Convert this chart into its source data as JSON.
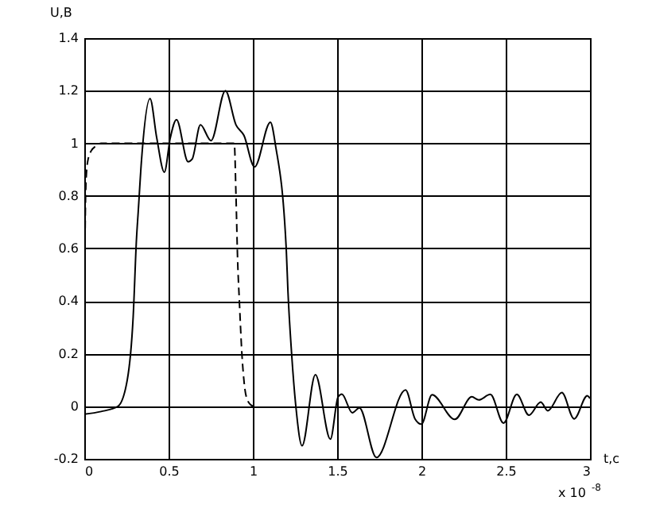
{
  "chart_data": {
    "type": "line",
    "xlabel": "t,с",
    "ylabel": "U,В",
    "annotations": [
      "x 10$^{-8}$"
    ],
    "xlim": [
      0,
      3
    ],
    "xticks": [
      0,
      0.5,
      1,
      1.5,
      2,
      2.5,
      3
    ],
    "ylim": [
      -0.2,
      1.4
    ],
    "yticks": [
      -0.2,
      0,
      0.2,
      0.4,
      0.6,
      0.8,
      1,
      1.2,
      1.4
    ],
    "grid": true,
    "series": [
      {
        "color": "#000000",
        "line_style": "dashed",
        "x": [
          0,
          0.003,
          0.01,
          0.02,
          0.04,
          0.07,
          0.1,
          0.5,
          0.89,
          0.9,
          0.91,
          0.92,
          0.935,
          0.95,
          0.97,
          1.0
        ],
        "values": [
          0,
          0.5,
          0.85,
          0.93,
          0.97,
          0.99,
          1.0,
          1.0,
          1.0,
          0.8,
          0.55,
          0.4,
          0.2,
          0.08,
          0.02,
          0
        ]
      },
      {
        "color": "#000000",
        "line_style": "solid",
        "x": [
          0,
          0.1,
          0.2,
          0.255,
          0.29,
          0.31,
          0.32,
          0.34,
          0.39,
          0.43,
          0.475,
          0.51,
          0.547,
          0.616,
          0.64,
          0.689,
          0.752,
          0.837,
          0.9,
          0.947,
          1.01,
          1.104,
          1.135,
          1.198,
          1.208,
          1.23,
          1.255,
          1.292,
          1.371,
          1.46,
          1.506,
          1.528,
          1.59,
          1.632,
          1.733,
          1.906,
          1.962,
          2.0,
          2.063,
          2.198,
          2.299,
          2.34,
          2.409,
          2.487,
          2.566,
          2.638,
          2.708,
          2.75,
          2.833,
          2.906,
          2.984,
          3.0
        ],
        "values": [
          -0.03,
          -0.02,
          0.0,
          0.1,
          0.34,
          0.64,
          0.74,
          0.94,
          1.17,
          1.02,
          0.89,
          1.02,
          1.09,
          0.93,
          0.94,
          1.07,
          1.01,
          1.2,
          1.07,
          1.03,
          0.91,
          1.08,
          0.99,
          0.6,
          0.44,
          0.2,
          0.0,
          -0.15,
          0.12,
          -0.125,
          0.036,
          0.046,
          -0.025,
          -0.006,
          -0.195,
          0.062,
          -0.048,
          -0.068,
          0.044,
          -0.05,
          0.036,
          0.024,
          0.045,
          -0.064,
          0.045,
          -0.034,
          0.016,
          -0.017,
          0.052,
          -0.048,
          0.04,
          0.03
        ]
      }
    ]
  }
}
